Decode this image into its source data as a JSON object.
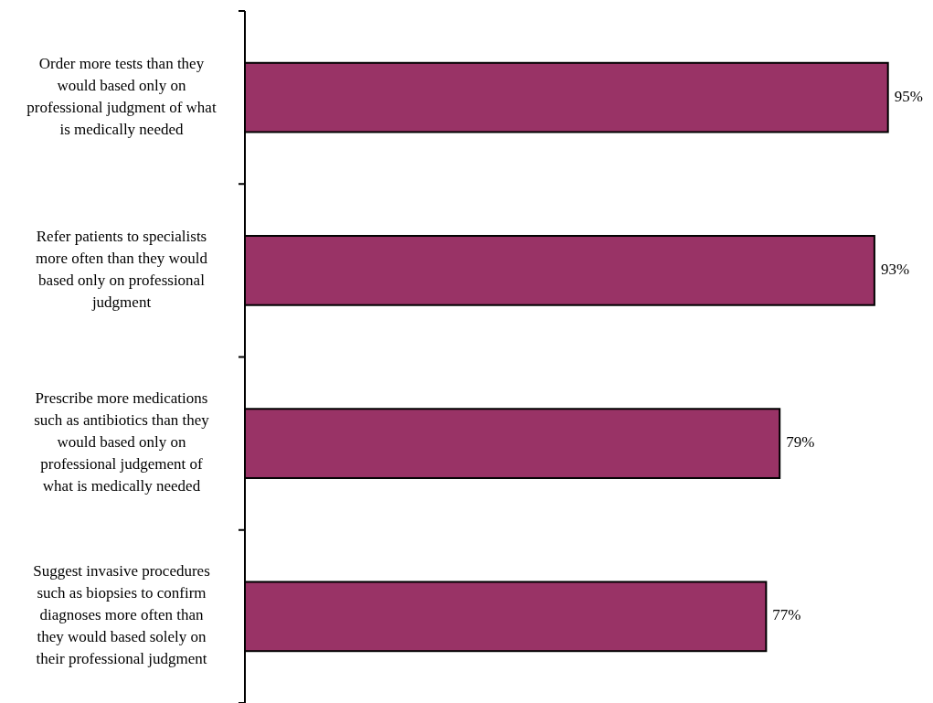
{
  "chart_data": {
    "type": "bar",
    "orientation": "horizontal",
    "categories": [
      "Order more tests than they would based only on professional judgment of what is medically needed",
      "Refer patients to specialists more often than they would based only on professional judgment",
      "Prescribe more medications such as antibiotics than they would based only on professional judgement of what is medically needed",
      "Suggest invasive procedures such as biopsies to confirm diagnoses more often than they would based solely on their professional judgment"
    ],
    "values": [
      95,
      93,
      79,
      77
    ],
    "value_labels": [
      "95%",
      "93%",
      "79%",
      "77%"
    ],
    "color": "#993366"
  }
}
